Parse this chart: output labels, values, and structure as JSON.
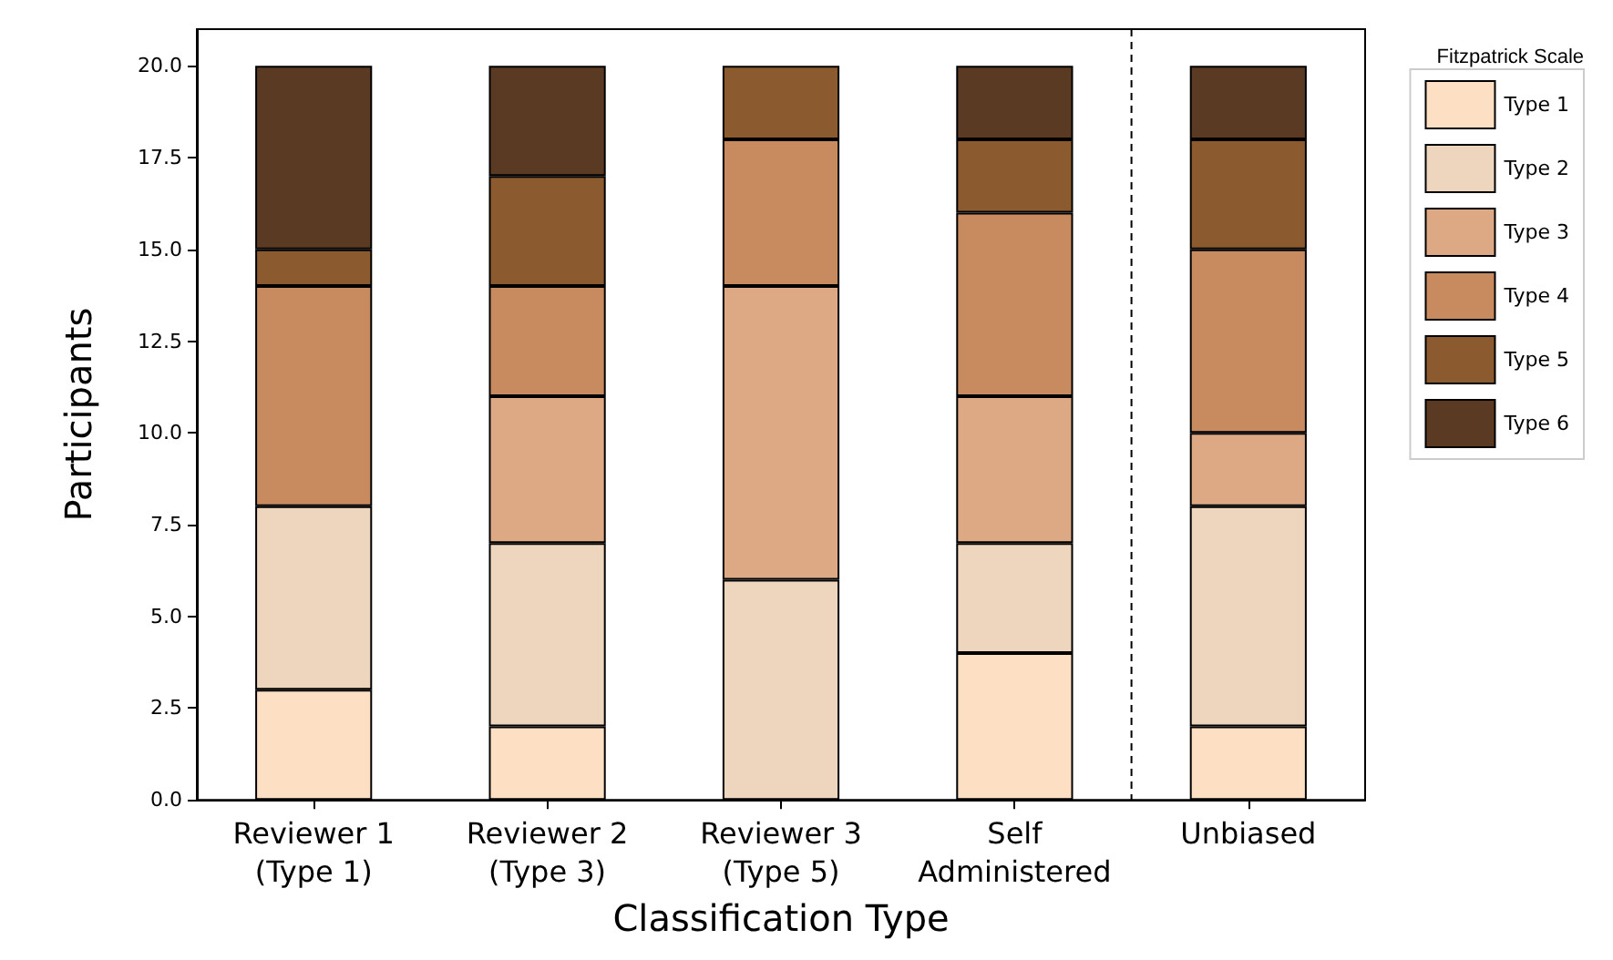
{
  "chart_data": {
    "type": "bar",
    "stacked": true,
    "xlabel": "Classification Type",
    "ylabel": "Participants",
    "legend_title": "Fitzpatrick Scale",
    "legend": "top right",
    "grid": false,
    "categories": [
      "Reviewer 1\n(Type 1)",
      "Reviewer 2\n(Type 3)",
      "Reviewer 3\n(Type 5)",
      "Self\nAdministered",
      "Unbiased"
    ],
    "ylim": [
      0,
      21
    ],
    "yticks": [
      {
        "value": 0,
        "label": "0.0"
      },
      {
        "value": 2.5,
        "label": "2.5"
      },
      {
        "value": 5,
        "label": "5.0"
      },
      {
        "value": 7.5,
        "label": "7.5"
      },
      {
        "value": 10,
        "label": "10.0"
      },
      {
        "value": 12.5,
        "label": "12.5"
      },
      {
        "value": 15,
        "label": "15.0"
      },
      {
        "value": 17.5,
        "label": "17.5"
      },
      {
        "value": 20,
        "label": "20.0"
      }
    ],
    "series": [
      {
        "name": "Type 1",
        "color": "#fddfc4",
        "values": [
          3,
          2,
          0,
          4,
          2
        ]
      },
      {
        "name": "Type 2",
        "color": "#eed5bd",
        "values": [
          5,
          5,
          6,
          3,
          6
        ]
      },
      {
        "name": "Type 3",
        "color": "#dda985",
        "values": [
          0,
          4,
          8,
          4,
          2
        ]
      },
      {
        "name": "Type 4",
        "color": "#c88a5f",
        "values": [
          6,
          3,
          4,
          5,
          5
        ]
      },
      {
        "name": "Type 5",
        "color": "#8b5a2e",
        "values": [
          1,
          3,
          2,
          2,
          3
        ]
      },
      {
        "name": "Type 6",
        "color": "#5b3a23",
        "values": [
          5,
          3,
          0,
          2,
          2
        ]
      }
    ]
  }
}
